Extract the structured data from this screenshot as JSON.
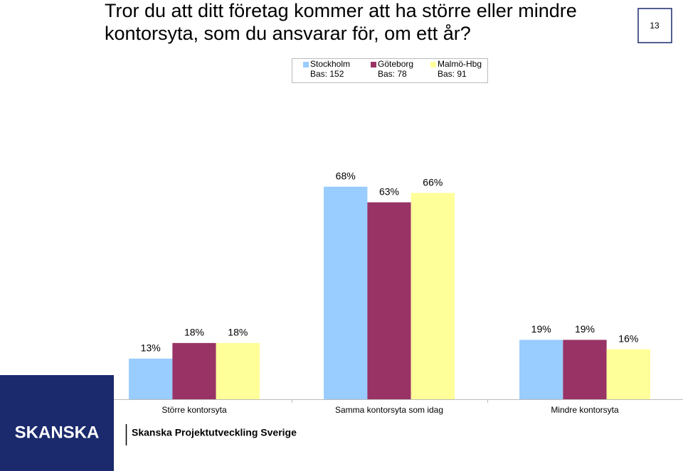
{
  "title": [
    "Tror du att ditt företag kommer att ha större eller mindre",
    "kontorsyta, som du ansvarar för, om ett år?"
  ],
  "page_number": "13",
  "logo": "SKANSKA",
  "footer": "Skanska Projektutveckling Sverige",
  "chart_data": {
    "type": "bar",
    "categories": [
      "Större kontorsyta",
      "Samma kontorsyta som idag",
      "Mindre kontorsyta"
    ],
    "series": [
      {
        "name": "Stockholm",
        "legend_note": "Bas: 152",
        "color": "#99ccff",
        "values": [
          13,
          68,
          19
        ],
        "value_labels": [
          "13%",
          "68%",
          "19%"
        ]
      },
      {
        "name": "Göteborg",
        "legend_note": "Bas: 78",
        "color": "#993366",
        "values": [
          18,
          63,
          19
        ],
        "value_labels": [
          "18%",
          "63%",
          "19%"
        ]
      },
      {
        "name": "Malmö-Hbg",
        "legend_note": "Bas: 91",
        "color": "#ffff99",
        "values": [
          18,
          66,
          16
        ],
        "value_labels": [
          "18%",
          "66%",
          "16%"
        ]
      }
    ]
  }
}
